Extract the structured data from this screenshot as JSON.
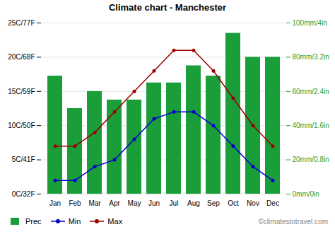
{
  "chart_data": {
    "type": "combo",
    "title": "Climate chart - Manchester",
    "categories": [
      "Jan",
      "Feb",
      "Mar",
      "Apr",
      "May",
      "Jun",
      "Jul",
      "Aug",
      "Sep",
      "Oct",
      "Nov",
      "Dec"
    ],
    "series": [
      {
        "name": "Prec",
        "type": "bar",
        "axis": "y2",
        "color": "#1a9e3a",
        "values": [
          69,
          50,
          60,
          55,
          55,
          65,
          65,
          75,
          69,
          94,
          80,
          80
        ]
      },
      {
        "name": "Min",
        "type": "line",
        "color": "#0000cc",
        "marker": "circle",
        "values": [
          2,
          2,
          4,
          5,
          8,
          11,
          12,
          12,
          10,
          7,
          4,
          2
        ]
      },
      {
        "name": "Max",
        "type": "line",
        "color": "#990000",
        "marker": "circle",
        "values": [
          7,
          7,
          9,
          12,
          15,
          18,
          21,
          21,
          18,
          14,
          10,
          7
        ]
      }
    ],
    "ylim": [
      0,
      25
    ],
    "yticks": [
      {
        "value": 0,
        "label": "0C/32F"
      },
      {
        "value": 5,
        "label": "5C/41F"
      },
      {
        "value": 10,
        "label": "10C/50F"
      },
      {
        "value": 15,
        "label": "15C/59F"
      },
      {
        "value": 20,
        "label": "20C/68F"
      },
      {
        "value": 25,
        "label": "25C/77F"
      }
    ],
    "y2lim": [
      0,
      100
    ],
    "y2ticks": [
      {
        "value": 0,
        "label": "0mm/0in"
      },
      {
        "value": 20,
        "label": "20mm/0.8in"
      },
      {
        "value": 40,
        "label": "40mm/1.6in"
      },
      {
        "value": 60,
        "label": "60mm/2.4in"
      },
      {
        "value": 80,
        "label": "80mm/3.2in"
      },
      {
        "value": 100,
        "label": "100mm/4in"
      }
    ],
    "grid": true,
    "legend": "lower left",
    "annotations": [
      "©climatestotravel.com"
    ]
  }
}
